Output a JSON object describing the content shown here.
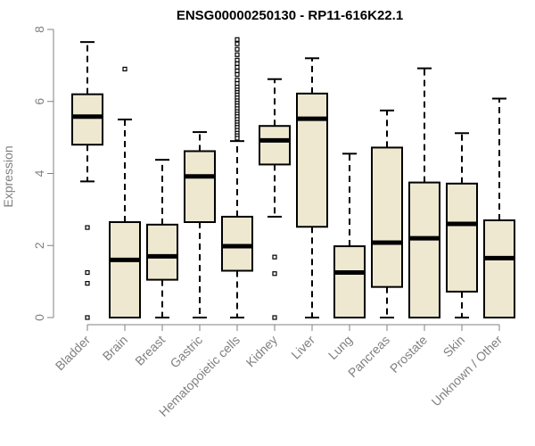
{
  "chart_data": {
    "type": "boxplot",
    "title": "ENSG00000250130 - RP11-616K22.1",
    "xlabel": "",
    "ylabel": "Expression",
    "ylim": [
      0,
      8
    ],
    "yticks": [
      0,
      2,
      4,
      6,
      8
    ],
    "box_fill": "#EEE8D0",
    "box_stroke": "#000000",
    "axis_color": "#808080",
    "categories": [
      "Bladder",
      "Brain",
      "Breast",
      "Gastric",
      "Hematopoietic cells",
      "Kidney",
      "Liver",
      "Lung",
      "Pancreas",
      "Prostate",
      "Skin",
      "Unknown / Other"
    ],
    "series": [
      {
        "name": "Bladder",
        "whisker_low": 3.78,
        "q1": 4.8,
        "median": 5.58,
        "q3": 6.2,
        "whisker_high": 7.65,
        "outliers": [
          2.5,
          1.25,
          0.95,
          0.0
        ]
      },
      {
        "name": "Brain",
        "whisker_low": 0.0,
        "q1": 0.0,
        "median": 1.6,
        "q3": 2.65,
        "whisker_high": 5.5,
        "outliers": [
          6.9
        ]
      },
      {
        "name": "Breast",
        "whisker_low": 0.0,
        "q1": 1.05,
        "median": 1.7,
        "q3": 2.58,
        "whisker_high": 4.38,
        "outliers": []
      },
      {
        "name": "Gastric",
        "whisker_low": 0.0,
        "q1": 2.65,
        "median": 3.92,
        "q3": 4.62,
        "whisker_high": 5.15,
        "outliers": []
      },
      {
        "name": "Hematopoietic cells",
        "whisker_low": 0.0,
        "q1": 1.3,
        "median": 1.98,
        "q3": 2.8,
        "whisker_high": 4.9,
        "outliers": [
          7.72,
          7.6,
          7.45,
          7.3,
          7.15,
          7.05,
          6.95,
          6.85,
          6.75,
          6.6,
          6.5,
          6.4,
          6.32,
          6.25,
          6.18,
          6.1,
          6.02,
          5.95,
          5.88,
          5.8,
          5.72,
          5.65,
          5.58,
          5.5,
          5.42,
          5.35,
          5.28,
          5.2,
          5.12,
          5.05,
          4.98
        ]
      },
      {
        "name": "Kidney",
        "whisker_low": 2.8,
        "q1": 4.25,
        "median": 4.92,
        "q3": 5.32,
        "whisker_high": 6.62,
        "outliers": [
          1.68,
          1.22,
          0.0
        ]
      },
      {
        "name": "Liver",
        "whisker_low": 0.0,
        "q1": 2.52,
        "median": 5.52,
        "q3": 6.22,
        "whisker_high": 7.2,
        "outliers": []
      },
      {
        "name": "Lung",
        "whisker_low": 0.0,
        "q1": 0.0,
        "median": 1.25,
        "q3": 1.98,
        "whisker_high": 4.55,
        "outliers": []
      },
      {
        "name": "Pancreas",
        "whisker_low": 0.0,
        "q1": 0.85,
        "median": 2.08,
        "q3": 4.72,
        "whisker_high": 5.75,
        "outliers": []
      },
      {
        "name": "Prostate",
        "whisker_low": 0.0,
        "q1": 0.0,
        "median": 2.2,
        "q3": 3.75,
        "whisker_high": 6.92,
        "outliers": []
      },
      {
        "name": "Skin",
        "whisker_low": 0.0,
        "q1": 0.72,
        "median": 2.6,
        "q3": 3.72,
        "whisker_high": 5.12,
        "outliers": []
      },
      {
        "name": "Unknown / Other",
        "whisker_low": 0.0,
        "q1": 0.0,
        "median": 1.65,
        "q3": 2.7,
        "whisker_high": 6.08,
        "outliers": []
      }
    ]
  }
}
